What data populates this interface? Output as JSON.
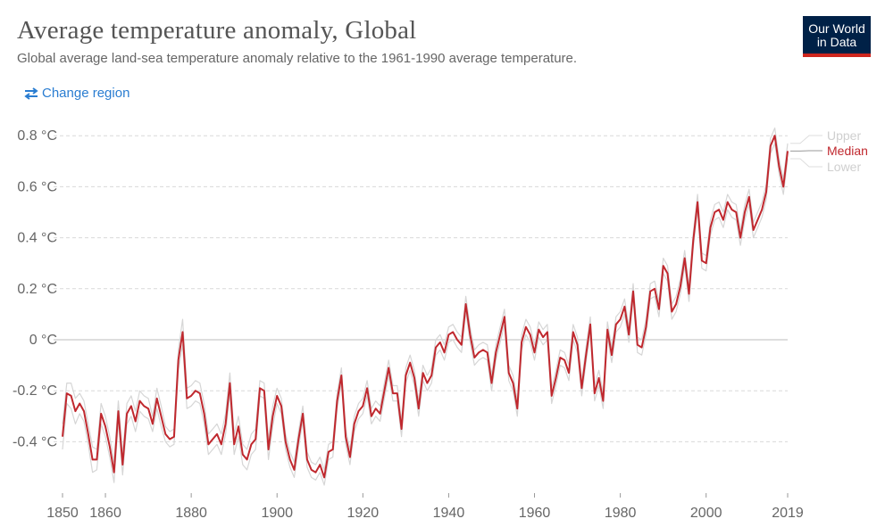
{
  "header": {
    "title": "Average temperature anomaly, Global",
    "subtitle": "Global average land-sea temperature anomaly relative to the 1961-1990 average temperature."
  },
  "logo": {
    "line1": "Our World",
    "line2": "in Data"
  },
  "controls": {
    "change_region_label": "Change region",
    "change_region_icon": "swap-arrows-icon"
  },
  "colors": {
    "median": "#c0282e",
    "bounds": "#d6d6d6",
    "accent": "#2a7dd1",
    "brand": "#002147",
    "brand_bar": "#ce261e"
  },
  "chart_data": {
    "type": "line",
    "title": "Average temperature anomaly, Global",
    "xlim": [
      1850,
      2019
    ],
    "ylim": [
      -0.6,
      0.85
    ],
    "x_ticks": [
      1850,
      1860,
      1880,
      1900,
      1920,
      1940,
      1960,
      1980,
      2000,
      2019
    ],
    "y_ticks": [
      -0.4,
      -0.2,
      0,
      0.2,
      0.4,
      0.6,
      0.8
    ],
    "y_tick_labels": [
      "-0.4 °C",
      "-0.2 °C",
      "0 °C",
      "0.2 °C",
      "0.4 °C",
      "0.6 °C",
      "0.8 °C"
    ],
    "grid": true,
    "legend_position": "right",
    "x": [
      1850,
      1851,
      1852,
      1853,
      1854,
      1855,
      1856,
      1857,
      1858,
      1859,
      1860,
      1861,
      1862,
      1863,
      1864,
      1865,
      1866,
      1867,
      1868,
      1869,
      1870,
      1871,
      1872,
      1873,
      1874,
      1875,
      1876,
      1877,
      1878,
      1879,
      1880,
      1881,
      1882,
      1883,
      1884,
      1885,
      1886,
      1887,
      1888,
      1889,
      1890,
      1891,
      1892,
      1893,
      1894,
      1895,
      1896,
      1897,
      1898,
      1899,
      1900,
      1901,
      1902,
      1903,
      1904,
      1905,
      1906,
      1907,
      1908,
      1909,
      1910,
      1911,
      1912,
      1913,
      1914,
      1915,
      1916,
      1917,
      1918,
      1919,
      1920,
      1921,
      1922,
      1923,
      1924,
      1925,
      1926,
      1927,
      1928,
      1929,
      1930,
      1931,
      1932,
      1933,
      1934,
      1935,
      1936,
      1937,
      1938,
      1939,
      1940,
      1941,
      1942,
      1943,
      1944,
      1945,
      1946,
      1947,
      1948,
      1949,
      1950,
      1951,
      1952,
      1953,
      1954,
      1955,
      1956,
      1957,
      1958,
      1959,
      1960,
      1961,
      1962,
      1963,
      1964,
      1965,
      1966,
      1967,
      1968,
      1969,
      1970,
      1971,
      1972,
      1973,
      1974,
      1975,
      1976,
      1977,
      1978,
      1979,
      1980,
      1981,
      1982,
      1983,
      1984,
      1985,
      1986,
      1987,
      1988,
      1989,
      1990,
      1991,
      1992,
      1993,
      1994,
      1995,
      1996,
      1997,
      1998,
      1999,
      2000,
      2001,
      2002,
      2003,
      2004,
      2005,
      2006,
      2007,
      2008,
      2009,
      2010,
      2011,
      2012,
      2013,
      2014,
      2015,
      2016,
      2017,
      2018,
      2019
    ],
    "series": [
      {
        "name": "Median",
        "values": [
          -0.38,
          -0.21,
          -0.22,
          -0.28,
          -0.25,
          -0.28,
          -0.37,
          -0.47,
          -0.47,
          -0.29,
          -0.34,
          -0.42,
          -0.52,
          -0.28,
          -0.49,
          -0.29,
          -0.26,
          -0.32,
          -0.24,
          -0.26,
          -0.27,
          -0.33,
          -0.23,
          -0.3,
          -0.37,
          -0.39,
          -0.38,
          -0.08,
          0.03,
          -0.23,
          -0.22,
          -0.2,
          -0.21,
          -0.29,
          -0.41,
          -0.39,
          -0.37,
          -0.41,
          -0.33,
          -0.17,
          -0.41,
          -0.34,
          -0.45,
          -0.47,
          -0.41,
          -0.39,
          -0.19,
          -0.2,
          -0.43,
          -0.3,
          -0.22,
          -0.26,
          -0.4,
          -0.47,
          -0.51,
          -0.39,
          -0.29,
          -0.47,
          -0.51,
          -0.52,
          -0.49,
          -0.54,
          -0.44,
          -0.43,
          -0.24,
          -0.14,
          -0.38,
          -0.46,
          -0.33,
          -0.28,
          -0.26,
          -0.19,
          -0.3,
          -0.27,
          -0.29,
          -0.2,
          -0.11,
          -0.21,
          -0.21,
          -0.35,
          -0.14,
          -0.09,
          -0.15,
          -0.27,
          -0.13,
          -0.17,
          -0.14,
          -0.03,
          -0.01,
          -0.05,
          0.02,
          0.03,
          0.0,
          -0.02,
          0.14,
          0.02,
          -0.07,
          -0.05,
          -0.04,
          -0.05,
          -0.17,
          -0.05,
          0.02,
          0.09,
          -0.13,
          -0.17,
          -0.27,
          -0.01,
          0.05,
          0.02,
          -0.05,
          0.04,
          0.01,
          0.03,
          -0.22,
          -0.15,
          -0.07,
          -0.08,
          -0.13,
          0.03,
          -0.02,
          -0.19,
          -0.06,
          0.06,
          -0.21,
          -0.15,
          -0.24,
          0.04,
          -0.06,
          0.06,
          0.08,
          0.13,
          0.02,
          0.19,
          -0.02,
          -0.03,
          0.05,
          0.19,
          0.2,
          0.12,
          0.29,
          0.26,
          0.11,
          0.14,
          0.21,
          0.32,
          0.18,
          0.39,
          0.54,
          0.31,
          0.3,
          0.44,
          0.5,
          0.51,
          0.47,
          0.54,
          0.51,
          0.5,
          0.4,
          0.5,
          0.56,
          0.43,
          0.47,
          0.51,
          0.58,
          0.76,
          0.8,
          0.68,
          0.6,
          0.74
        ]
      },
      {
        "name": "Upper",
        "values": [
          -0.33,
          -0.17,
          -0.17,
          -0.23,
          -0.21,
          -0.24,
          -0.33,
          -0.42,
          -0.43,
          -0.25,
          -0.3,
          -0.38,
          -0.48,
          -0.24,
          -0.45,
          -0.25,
          -0.22,
          -0.28,
          -0.2,
          -0.22,
          -0.23,
          -0.3,
          -0.19,
          -0.26,
          -0.34,
          -0.36,
          -0.35,
          -0.04,
          0.08,
          -0.19,
          -0.18,
          -0.16,
          -0.17,
          -0.25,
          -0.37,
          -0.35,
          -0.33,
          -0.37,
          -0.29,
          -0.13,
          -0.37,
          -0.3,
          -0.41,
          -0.43,
          -0.37,
          -0.35,
          -0.16,
          -0.17,
          -0.39,
          -0.26,
          -0.19,
          -0.23,
          -0.37,
          -0.44,
          -0.48,
          -0.36,
          -0.26,
          -0.44,
          -0.48,
          -0.49,
          -0.46,
          -0.51,
          -0.41,
          -0.4,
          -0.21,
          -0.11,
          -0.35,
          -0.43,
          -0.3,
          -0.25,
          -0.23,
          -0.16,
          -0.27,
          -0.24,
          -0.26,
          -0.17,
          -0.08,
          -0.18,
          -0.18,
          -0.32,
          -0.11,
          -0.06,
          -0.12,
          -0.24,
          -0.1,
          -0.14,
          -0.11,
          0.0,
          0.02,
          -0.02,
          0.05,
          0.06,
          0.03,
          0.01,
          0.17,
          0.05,
          -0.04,
          -0.02,
          -0.01,
          -0.02,
          -0.14,
          -0.02,
          0.05,
          0.12,
          -0.1,
          -0.14,
          -0.24,
          0.02,
          0.08,
          0.05,
          -0.02,
          0.07,
          0.04,
          0.06,
          -0.19,
          -0.12,
          -0.04,
          -0.05,
          -0.1,
          0.06,
          0.01,
          -0.16,
          -0.03,
          0.09,
          -0.18,
          -0.12,
          -0.21,
          0.07,
          -0.03,
          0.09,
          0.11,
          0.16,
          0.05,
          0.22,
          0.01,
          0.0,
          0.08,
          0.22,
          0.23,
          0.15,
          0.32,
          0.29,
          0.14,
          0.17,
          0.24,
          0.35,
          0.21,
          0.42,
          0.57,
          0.34,
          0.33,
          0.47,
          0.53,
          0.54,
          0.5,
          0.57,
          0.54,
          0.53,
          0.43,
          0.53,
          0.59,
          0.46,
          0.5,
          0.54,
          0.61,
          0.79,
          0.83,
          0.71,
          0.63,
          0.77
        ]
      },
      {
        "name": "Lower",
        "values": [
          -0.43,
          -0.25,
          -0.27,
          -0.33,
          -0.29,
          -0.32,
          -0.41,
          -0.52,
          -0.51,
          -0.33,
          -0.38,
          -0.46,
          -0.56,
          -0.32,
          -0.53,
          -0.33,
          -0.3,
          -0.36,
          -0.28,
          -0.3,
          -0.31,
          -0.36,
          -0.27,
          -0.34,
          -0.4,
          -0.42,
          -0.41,
          -0.12,
          -0.02,
          -0.27,
          -0.26,
          -0.24,
          -0.25,
          -0.33,
          -0.45,
          -0.43,
          -0.41,
          -0.45,
          -0.37,
          -0.21,
          -0.45,
          -0.38,
          -0.49,
          -0.51,
          -0.45,
          -0.43,
          -0.22,
          -0.23,
          -0.47,
          -0.34,
          -0.25,
          -0.29,
          -0.43,
          -0.5,
          -0.54,
          -0.42,
          -0.32,
          -0.5,
          -0.54,
          -0.55,
          -0.52,
          -0.57,
          -0.47,
          -0.46,
          -0.27,
          -0.17,
          -0.41,
          -0.49,
          -0.36,
          -0.31,
          -0.29,
          -0.22,
          -0.33,
          -0.3,
          -0.32,
          -0.23,
          -0.14,
          -0.24,
          -0.24,
          -0.38,
          -0.17,
          -0.12,
          -0.18,
          -0.3,
          -0.16,
          -0.2,
          -0.17,
          -0.06,
          -0.04,
          -0.08,
          -0.01,
          0.0,
          -0.03,
          -0.05,
          0.11,
          -0.01,
          -0.1,
          -0.08,
          -0.07,
          -0.08,
          -0.2,
          -0.08,
          -0.01,
          0.06,
          -0.16,
          -0.2,
          -0.3,
          -0.04,
          0.02,
          -0.01,
          -0.08,
          0.01,
          -0.02,
          0.0,
          -0.25,
          -0.18,
          -0.1,
          -0.11,
          -0.16,
          0.0,
          -0.05,
          -0.22,
          -0.09,
          0.03,
          -0.24,
          -0.18,
          -0.27,
          0.01,
          -0.09,
          0.03,
          0.05,
          0.1,
          -0.01,
          0.16,
          -0.05,
          -0.06,
          0.02,
          0.16,
          0.17,
          0.09,
          0.26,
          0.23,
          0.08,
          0.11,
          0.18,
          0.29,
          0.15,
          0.36,
          0.51,
          0.28,
          0.27,
          0.41,
          0.47,
          0.48,
          0.44,
          0.51,
          0.48,
          0.47,
          0.37,
          0.47,
          0.53,
          0.4,
          0.44,
          0.48,
          0.55,
          0.73,
          0.77,
          0.65,
          0.57,
          0.71
        ]
      }
    ]
  }
}
